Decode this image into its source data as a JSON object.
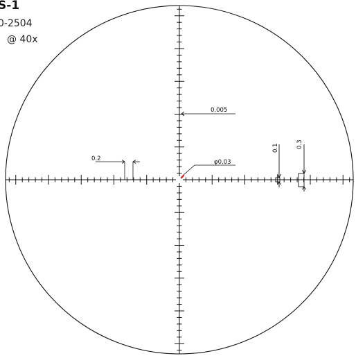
{
  "header": {
    "title": "S-1",
    "line1": "0-2504",
    "line2": "@ 40x"
  },
  "reticle": {
    "colors": {
      "lines": "#111111",
      "center_dot": "#d0282e",
      "background": "#ffffff"
    }
  },
  "annotations": {
    "vertical_spacing": "0.005",
    "horizontal_gap": "0.2",
    "center_dot": "φ0.03",
    "small_box": "0.1",
    "large_box": "0.3"
  }
}
